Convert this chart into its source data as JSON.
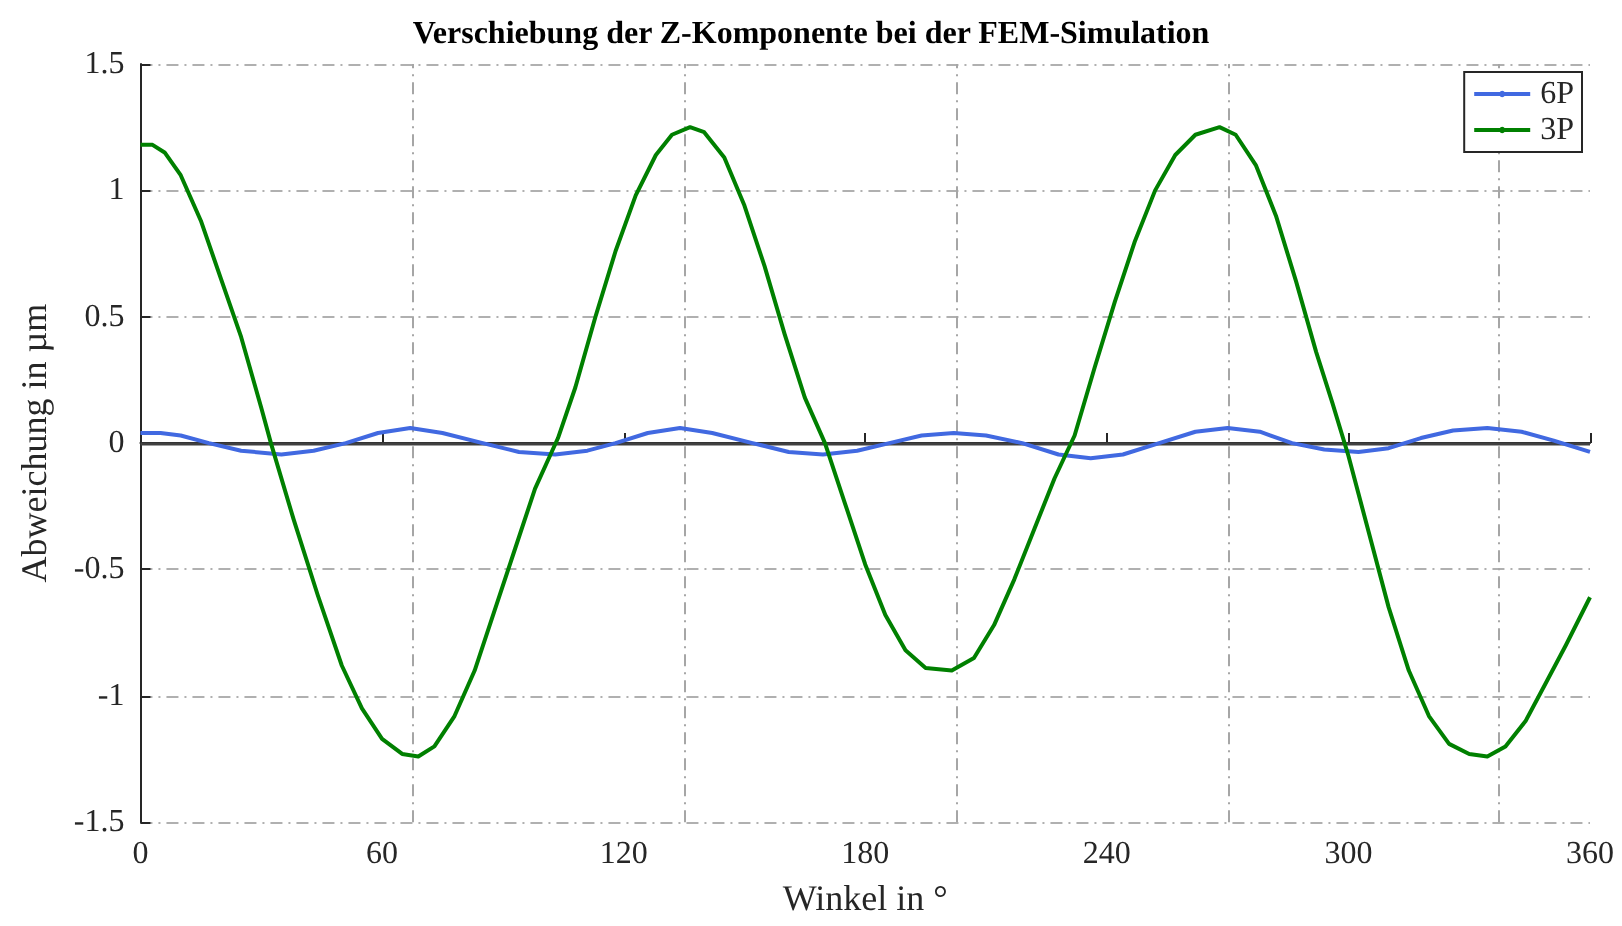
{
  "chart_data": {
    "type": "line",
    "title": "Verschiebung der Z-Komponente bei der FEM-Simulation",
    "xlabel": "Winkel in °",
    "ylabel": "Abweichung in µm",
    "xlim": [
      0,
      360
    ],
    "xticks": [
      0,
      60,
      120,
      180,
      240,
      300,
      360
    ],
    "ylim": [
      -1.5,
      1.5
    ],
    "yticks": [
      -1.5,
      -1,
      -0.5,
      0,
      0.5,
      1,
      1.5
    ],
    "grid": "y",
    "legend": "top right",
    "ref_lines": [
      {
        "axis": "y",
        "value": 0,
        "color": "#404040",
        "line_style": "solid"
      },
      {
        "axis": "x",
        "value": 67.5,
        "color": "#a6a6a6",
        "line_style": "dashed"
      },
      {
        "axis": "x",
        "value": 135,
        "color": "#a6a6a6",
        "line_style": "dashed"
      },
      {
        "axis": "x",
        "value": 202.5,
        "color": "#a6a6a6",
        "line_style": "dashed"
      },
      {
        "axis": "x",
        "value": 270,
        "color": "#a6a6a6",
        "line_style": "dashed"
      },
      {
        "axis": "x",
        "value": 337.5,
        "color": "#a6a6a6",
        "line_style": "dashed"
      }
    ],
    "series": [
      {
        "name": "6P",
        "color": "#4169e1",
        "x": [
          0,
          5,
          10,
          17,
          25,
          35,
          43,
          51,
          59,
          67,
          75,
          85,
          94,
          103,
          111,
          118,
          126,
          134,
          142,
          152,
          161,
          169.5,
          178,
          186,
          194,
          202,
          210,
          219,
          228,
          236,
          244,
          253,
          262,
          270,
          278,
          286,
          294,
          302.5,
          310,
          318,
          326,
          334.5,
          343,
          351,
          360
        ],
        "values": [
          0.04,
          0.04,
          0.03,
          0.0,
          -0.03,
          -0.045,
          -0.03,
          0.0,
          0.04,
          0.06,
          0.04,
          0.0,
          -0.035,
          -0.045,
          -0.03,
          0.0,
          0.04,
          0.06,
          0.04,
          0.0,
          -0.035,
          -0.045,
          -0.03,
          0.0,
          0.03,
          0.04,
          0.03,
          0.0,
          -0.045,
          -0.06,
          -0.045,
          0.0,
          0.045,
          0.06,
          0.045,
          0.0,
          -0.025,
          -0.035,
          -0.02,
          0.02,
          0.05,
          0.06,
          0.045,
          0.01,
          -0.035
        ]
      },
      {
        "name": "3P",
        "color": "#008000",
        "x": [
          0,
          3,
          6,
          10,
          15,
          20,
          25,
          30,
          32.4,
          38,
          44,
          50,
          55,
          60,
          65,
          69,
          73,
          78,
          83,
          88,
          93,
          98,
          103.7,
          108,
          113,
          118,
          123,
          128,
          132,
          136.5,
          140,
          145,
          150,
          155,
          160,
          165,
          170,
          175,
          180,
          185,
          190,
          195,
          201.5,
          207,
          212,
          217,
          222,
          227,
          232,
          237,
          242,
          247,
          252,
          257,
          262,
          268,
          272,
          277,
          282,
          287,
          292,
          296,
          300,
          305,
          310,
          315,
          320,
          325,
          330,
          334.5,
          339,
          344,
          349,
          354,
          360
        ],
        "values": [
          1.18,
          1.18,
          1.15,
          1.06,
          0.88,
          0.65,
          0.42,
          0.14,
          0,
          -0.3,
          -0.6,
          -0.88,
          -1.05,
          -1.17,
          -1.23,
          -1.24,
          -1.2,
          -1.08,
          -0.9,
          -0.66,
          -0.42,
          -0.18,
          0.02,
          0.22,
          0.5,
          0.76,
          0.98,
          1.14,
          1.22,
          1.25,
          1.23,
          1.13,
          0.94,
          0.7,
          0.43,
          0.18,
          0,
          -0.24,
          -0.48,
          -0.68,
          -0.82,
          -0.89,
          -0.9,
          -0.85,
          -0.72,
          -0.54,
          -0.34,
          -0.14,
          0.03,
          0.3,
          0.56,
          0.8,
          1.0,
          1.14,
          1.22,
          1.25,
          1.22,
          1.1,
          0.9,
          0.64,
          0.36,
          0.16,
          -0.05,
          -0.35,
          -0.65,
          -0.9,
          -1.08,
          -1.19,
          -1.23,
          -1.24,
          -1.2,
          -1.1,
          -0.95,
          -0.8,
          -0.61
        ]
      }
    ]
  }
}
